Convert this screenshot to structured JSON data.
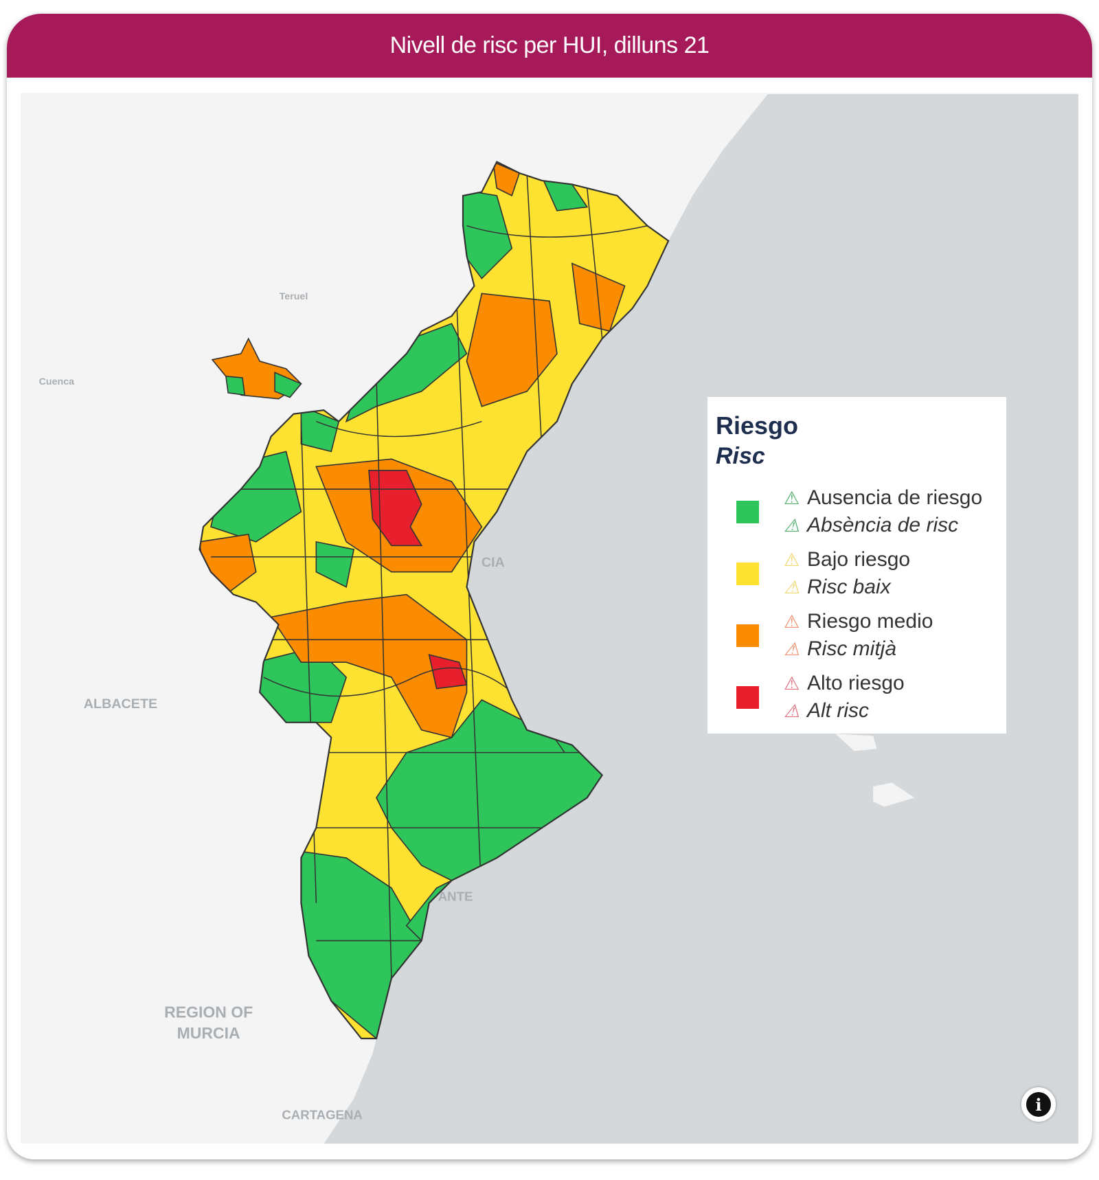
{
  "header": {
    "title": "Nivell de risc per HUI, dilluns 21"
  },
  "map": {
    "labels": {
      "teruel": "Teruel",
      "cuenca": "Cuenca",
      "albacete": "ALBACETE",
      "murcia_1": "REGION OF",
      "murcia_2": "MURCIA",
      "cartagena": "CARTAGENA",
      "valencia_partial": "CIA",
      "alicante_partial": "ANTE"
    },
    "colors": {
      "sea": "#d4d8db",
      "land": "#f4f4f4",
      "border": "#3a3a3a"
    }
  },
  "legend": {
    "title": "Riesgo",
    "subtitle": "Risc",
    "items": [
      {
        "es": "Ausencia de riesgo",
        "ca": "Absència de risc",
        "color": "#2ec55a",
        "icon_color": "#55b070"
      },
      {
        "es": "Bajo riesgo",
        "ca": "Risc baix",
        "color": "#fde232",
        "icon_color": "#f0d870"
      },
      {
        "es": "Riesgo medio",
        "ca": "Risc mitjà",
        "color": "#fb8c00",
        "icon_color": "#f09070"
      },
      {
        "es": "Alto riesgo",
        "ca": "Alt risc",
        "color": "#e8202e",
        "icon_color": "#e07080"
      }
    ],
    "warning_icon": "⚠"
  },
  "info_button": {
    "icon": "info-icon",
    "glyph": "i"
  }
}
